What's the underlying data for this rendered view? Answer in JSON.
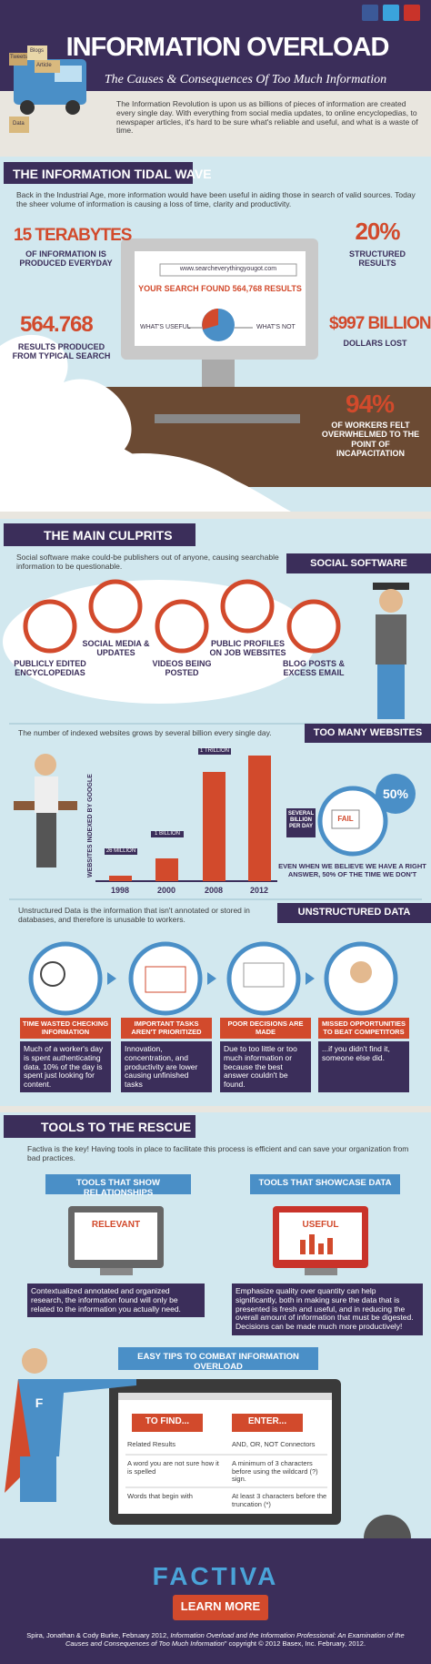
{
  "header": {
    "title": "INFORMATION OVERLOAD",
    "subtitle": "The Causes & Consequences Of Too Much Information",
    "truck_labels": [
      "Tweets",
      "Blogs",
      "Article",
      "Data"
    ],
    "intro": "The Information Revolution is upon us as billions of pieces of information are created every single day. With everything from social media updates, to online encyclopedias, to newspaper articles, it's hard to be sure what's reliable and useful, and what is a waste of time."
  },
  "tidal_wave": {
    "title": "THE INFORMATION TIDAL WAVE",
    "text": "Back in the Industrial Age, more information would have been useful in aiding those in search of valid sources. Today the sheer volume of information is causing a loss of time, clarity and productivity.",
    "stats": [
      {
        "value": "15 TERABYTES",
        "label": "OF INFORMATION IS PRODUCED EVERYDAY"
      },
      {
        "value": "20%",
        "label": "STRUCTURED RESULTS"
      },
      {
        "value": "564.768",
        "label": "RESULTS PRODUCED FROM TYPICAL SEARCH"
      },
      {
        "value": "$997 BILLION",
        "label": "DOLLARS LOST"
      },
      {
        "value": "94%",
        "label": "OF WORKERS FELT OVERWHELMED TO THE POINT OF INCAPACITATION"
      }
    ],
    "screen": {
      "url": "www.searcheverythingyougot.com",
      "result": "YOUR SEARCH FOUND 564,768 RESULTS",
      "useful": "WHAT'S USEFUL",
      "not_useful": "WHAT'S NOT"
    }
  },
  "culprits": {
    "title": "THE MAIN CULPRITS",
    "text": "Social software make could-be publishers out of anyone, causing searchable information to be questionable.",
    "social_title": "SOCIAL SOFTWARE",
    "items": [
      "PUBLICLY EDITED ENCYCLOPEDIAS",
      "SOCIAL MEDIA & UPDATES",
      "VIDEOS BEING POSTED",
      "PUBLIC PROFILES ON JOB WEBSITES",
      "BLOG POSTS & EXCESS EMAIL"
    ],
    "websites_title": "TOO MANY WEBSITES",
    "websites_text": "The number of indexed websites grows by several billion every single day.",
    "axis_label": "WEBSITES INDEXED BY GOOGLE",
    "years": [
      "1998",
      "2000",
      "2008",
      "2012"
    ],
    "bar_labels": [
      "26 MILLION",
      "1 BILLION",
      "1 TRILLION",
      null
    ],
    "per_day": "SEVERAL BILLION PER DAY",
    "fail": "FAIL",
    "percent": "50%",
    "answer_note": "EVEN WHEN WE BELIEVE WE HAVE A RIGHT ANSWER, 50% OF THE TIME WE DON'T",
    "unstructured_title": "UNSTRUCTURED DATA",
    "unstructured_text": "Unstructured Data is the information that isn't annotated or stored in databases, and therefore is unusable to workers.",
    "consequences": [
      {
        "title": "TIME WASTED CHECKING INFORMATION",
        "text": "Much of a worker's day is spent authenticating data. 10% of the day is spent just looking for content."
      },
      {
        "title": "IMPORTANT TASKS AREN'T PRIORITIZED",
        "text": "Innovation, concentration, and productivity are lower causing unfinished tasks"
      },
      {
        "title": "POOR DECISIONS ARE MADE",
        "text": "Due to too little or too much information or because the best answer couldn't be found."
      },
      {
        "title": "MISSED OPPORTUNITIES TO BEAT COMPETITORS",
        "text": "...if you didn't find it, someone else did."
      }
    ]
  },
  "rescue": {
    "title": "TOOLS TO THE RESCUE",
    "text": "Factiva is the key! Having tools in place to facilitate this process is efficient and can save your organization from bad practices.",
    "tools": [
      {
        "title": "TOOLS THAT SHOW RELATIONSHIPS",
        "screen": "RELEVANT",
        "text": "Contextualized annotated and organized research, the information found will only be related to the information you actually need."
      },
      {
        "title": "TOOLS THAT SHOWCASE DATA",
        "screen": "USEFUL",
        "text": "Emphasize quality over quantity can help significantly, both in making sure the data that is presented is fresh and useful, and in reducing the overall amount of information that must be digested. Decisions can be made much more productively!"
      }
    ],
    "tips_title": "EASY TIPS TO COMBAT INFORMATION OVERLOAD",
    "hero_letter": "F",
    "columns": [
      "TO FIND...",
      "ENTER..."
    ],
    "rows": [
      [
        "Related Results",
        "AND, OR, NOT Connectors"
      ],
      [
        "A word you are not sure how it is spelled",
        "A minimum of 3 characters before using the wildcard (?) sign."
      ],
      [
        "Words that begin with",
        "At least 3 characters before the truncation (*)"
      ]
    ]
  },
  "footer": {
    "brand": "FACTIVA",
    "button": "LEARN MORE",
    "citation_before": "Spira, Jonathan & Cody Burke, February 2012, ",
    "citation_title": "Information Overload and the Information Professional: An Examination of the Causes and Consequences of Too Much Information",
    "citation_after": "\" copyright © 2012 Basex, Inc. February, 2012."
  }
}
